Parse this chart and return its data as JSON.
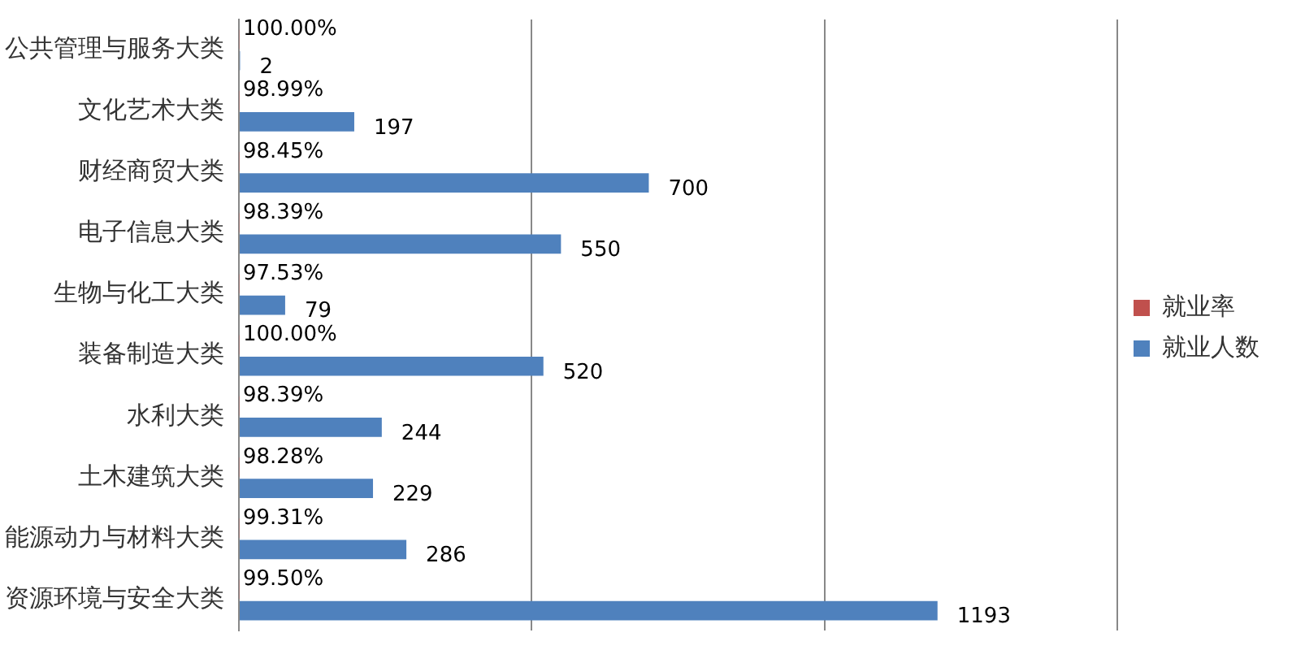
{
  "chart_data": {
    "type": "bar",
    "orientation": "horizontal",
    "categories": [
      "公共管理与服务大类",
      "文化艺术大类",
      "财经商贸大类",
      "电子信息大类",
      "生物与化工大类",
      "装备制造大类",
      "水利大类",
      "土木建筑大类",
      "能源动力与材料大类",
      "资源环境与安全大类"
    ],
    "series": [
      {
        "name": "就业率",
        "color": "#c0504d",
        "values": [
          1.0,
          0.9899,
          0.9845,
          0.9839,
          0.9753,
          1.0,
          0.9839,
          0.9828,
          0.9931,
          0.995
        ],
        "value_labels": [
          "100.00%",
          "98.99%",
          "98.45%",
          "98.39%",
          "97.53%",
          "100.00%",
          "98.39%",
          "98.28%",
          "99.31%",
          "99.50%"
        ]
      },
      {
        "name": "就业人数",
        "color": "#4f81bd",
        "values": [
          2,
          197,
          700,
          550,
          79,
          520,
          244,
          229,
          286,
          1193
        ],
        "value_labels": [
          "2",
          "197",
          "700",
          "550",
          "79",
          "520",
          "244",
          "229",
          "286",
          "1193"
        ]
      }
    ],
    "xlim": [
      0,
      1500
    ],
    "xticks": [
      {
        "value": 0,
        "label": null
      },
      {
        "value": 500,
        "label": null
      },
      {
        "value": 1000,
        "label": null
      },
      {
        "value": 1500,
        "label": null
      }
    ],
    "tick_labels": "y",
    "grid": "x",
    "legend": "right"
  }
}
